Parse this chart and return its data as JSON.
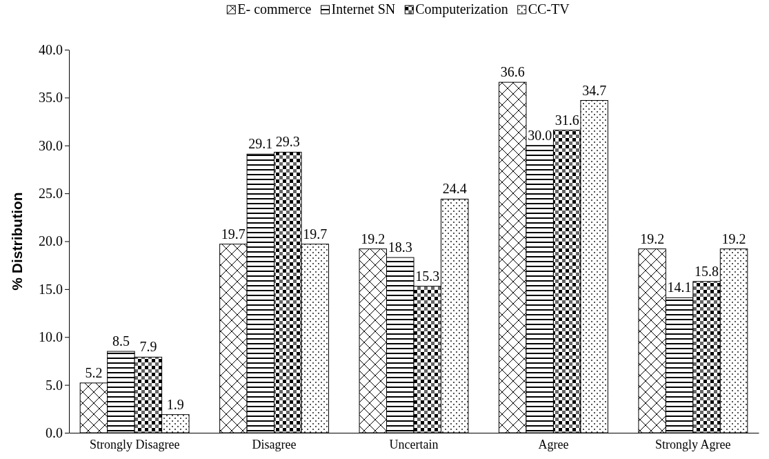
{
  "chart_data": {
    "type": "bar",
    "ylabel": "% Distribution",
    "categories": [
      "Strongly Disagree",
      "Disagree",
      "Uncertain",
      "Agree",
      "Strongly Agree"
    ],
    "series": [
      {
        "name": "E- commerce",
        "color": "#000000",
        "values": [
          5.2,
          19.7,
          19.2,
          36.6,
          19.2
        ],
        "value_labels": [
          "5.2",
          "19.7",
          "19.2",
          "36.6",
          "19.2"
        ]
      },
      {
        "name": "Internet SN",
        "color": "#000000",
        "values": [
          8.5,
          29.1,
          18.3,
          30.0,
          14.1
        ],
        "value_labels": [
          "8.5",
          "29.1",
          "18.3",
          "30.0",
          "14.1"
        ]
      },
      {
        "name": "Computerization",
        "color": "#000000",
        "values": [
          7.9,
          29.3,
          15.3,
          31.6,
          15.8
        ],
        "value_labels": [
          "7.9",
          "29.3",
          "15.3",
          "31.6",
          "15.8"
        ]
      },
      {
        "name": "CC-TV",
        "color": "#000000",
        "values": [
          1.9,
          19.7,
          24.4,
          34.7,
          19.2
        ],
        "value_labels": [
          "1.9",
          "19.7",
          "24.4",
          "34.7",
          "19.2"
        ]
      }
    ],
    "ylim": [
      0,
      40
    ],
    "yticks": [
      {
        "value": 0,
        "label": "0.0"
      },
      {
        "value": 5,
        "label": "5.0"
      },
      {
        "value": 10,
        "label": "10.0"
      },
      {
        "value": 15,
        "label": "15.0"
      },
      {
        "value": 20,
        "label": "20.0"
      },
      {
        "value": 25,
        "label": "25.0"
      },
      {
        "value": 30,
        "label": "30.0"
      },
      {
        "value": 35,
        "label": "35.0"
      },
      {
        "value": 40,
        "label": "40.0"
      }
    ],
    "legend": "top",
    "grid": false
  }
}
